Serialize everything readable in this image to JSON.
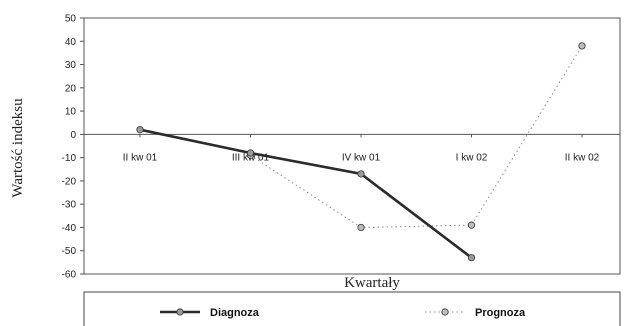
{
  "chart_data": {
    "type": "line",
    "title": "",
    "xlabel": "Kwartały",
    "ylabel": "Wartość indeksu",
    "categories": [
      "II kw 01",
      "III kw 01",
      "IV kw 01",
      "I kw 02",
      "II kw 02"
    ],
    "ylim": [
      -60,
      50
    ],
    "yticks": [
      50,
      40,
      30,
      20,
      10,
      0,
      -10,
      -20,
      -30,
      -40,
      -50,
      -60
    ],
    "grid": false,
    "legend_position": "bottom",
    "series": [
      {
        "name": "Diagnoza",
        "values": [
          2,
          -8,
          -17,
          -53,
          null
        ],
        "color": "#2b2b2b",
        "line_style": "solid"
      },
      {
        "name": "Prognoza",
        "values": [
          null,
          -9,
          -40,
          -39,
          38
        ],
        "color": "#8a8a8a",
        "line_style": "dotted"
      }
    ]
  }
}
